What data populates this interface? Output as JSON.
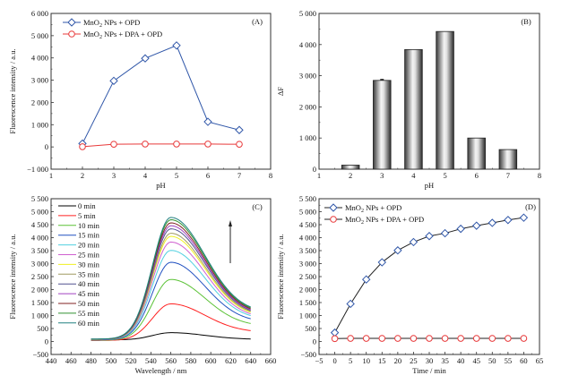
{
  "chart_data": [
    {
      "id": "A",
      "type": "line",
      "panel_label": "(A)",
      "xlabel": "pH",
      "ylabel": "Fluorescence intensity / a.u.",
      "xlim": [
        1,
        8
      ],
      "ylim": [
        -1000,
        6000
      ],
      "xticks": [
        1,
        2,
        3,
        4,
        5,
        6,
        7,
        8
      ],
      "yticks": [
        -1000,
        0,
        1000,
        2000,
        3000,
        4000,
        5000,
        6000
      ],
      "ytick_labels": [
        "−1 000",
        "0",
        "1 000",
        "2 000",
        "3 000",
        "4 000",
        "5 000",
        "6 000"
      ],
      "legend_position": "top-left",
      "x": [
        2,
        3,
        4,
        5,
        6,
        7
      ],
      "series": [
        {
          "name": "MnO2 NPs + OPD",
          "name_main": "MnO",
          "name_sub": "2",
          "name_rest": " NPs + OPD",
          "color": "#2f56a8",
          "marker": "diamond",
          "values": [
            150,
            2970,
            3980,
            4560,
            1130,
            760
          ]
        },
        {
          "name": "MnO2 NPs + DPA + OPD",
          "name_main": "MnO",
          "name_sub": "2",
          "name_rest": " NPs + DPA + OPD",
          "color": "#e8393a",
          "marker": "circle",
          "values": [
            10,
            120,
            130,
            130,
            130,
            120
          ]
        }
      ]
    },
    {
      "id": "B",
      "type": "bar",
      "panel_label": "(B)",
      "xlabel": "pH",
      "ylabel": "ΔF",
      "xlim": [
        1,
        8
      ],
      "ylim": [
        0,
        5000
      ],
      "xticks": [
        1,
        2,
        3,
        4,
        5,
        6,
        7,
        8
      ],
      "yticks": [
        0,
        1000,
        2000,
        3000,
        4000,
        5000
      ],
      "ytick_labels": [
        "0",
        "1 000",
        "2 000",
        "3 000",
        "4 000",
        "5 000"
      ],
      "categories": [
        2,
        3,
        4,
        5,
        6,
        7
      ],
      "values": [
        130,
        2850,
        3840,
        4420,
        1000,
        630
      ]
    },
    {
      "id": "C",
      "type": "line",
      "panel_label": "(C)",
      "xlabel": "Wavelength / nm",
      "ylabel": "Fluorescence intensity / a.u.",
      "xlim": [
        440,
        660
      ],
      "ylim": [
        -500,
        5500
      ],
      "xticks": [
        440,
        460,
        480,
        500,
        520,
        540,
        560,
        580,
        600,
        620,
        640,
        660
      ],
      "yticks": [
        -500,
        0,
        500,
        1000,
        1500,
        2000,
        2500,
        3000,
        3500,
        4000,
        4500,
        5000,
        5500
      ],
      "ytick_labels": [
        "−500",
        "0",
        "500",
        "1 000",
        "1 500",
        "2 000",
        "2 500",
        "3 000",
        "3 500",
        "4 000",
        "4 500",
        "5 000",
        "5 500"
      ],
      "legend_position": "top-left",
      "annotation": "upward arrow indicating increasing time",
      "x_range_data": [
        480,
        640
      ],
      "peak_wavelength": 560,
      "series": [
        {
          "name": "0 min",
          "color": "#000000",
          "peak": 340,
          "start": 60,
          "end": 80
        },
        {
          "name": "5 min",
          "color": "#ff2020",
          "peak": 1450,
          "start": 40,
          "end": 350
        },
        {
          "name": "10 min",
          "color": "#5bc236",
          "peak": 2390,
          "start": 50,
          "end": 580
        },
        {
          "name": "15 min",
          "color": "#2050c0",
          "peak": 3050,
          "start": 60,
          "end": 730
        },
        {
          "name": "20 min",
          "color": "#50d0e0",
          "peak": 3510,
          "start": 70,
          "end": 830
        },
        {
          "name": "25 min",
          "color": "#d060d0",
          "peak": 3830,
          "start": 75,
          "end": 880
        },
        {
          "name": "30 min",
          "color": "#f0f020",
          "peak": 4050,
          "start": 80,
          "end": 930
        },
        {
          "name": "35 min",
          "color": "#a09a60",
          "peak": 4170,
          "start": 80,
          "end": 960
        },
        {
          "name": "40 min",
          "color": "#505090",
          "peak": 4340,
          "start": 85,
          "end": 990
        },
        {
          "name": "45 min",
          "color": "#a040c0",
          "peak": 4460,
          "start": 85,
          "end": 1010
        },
        {
          "name": "50 min",
          "color": "#802020",
          "peak": 4570,
          "start": 90,
          "end": 1040
        },
        {
          "name": "55 min",
          "color": "#309030",
          "peak": 4690,
          "start": 90,
          "end": 1070
        },
        {
          "name": "60 min",
          "color": "#208080",
          "peak": 4780,
          "start": 95,
          "end": 1100
        }
      ]
    },
    {
      "id": "D",
      "type": "line",
      "panel_label": "(D)",
      "xlabel": "Time / min",
      "ylabel": "Fluorescence intensity / a.u.",
      "xlim": [
        -5,
        65
      ],
      "ylim": [
        -500,
        5500
      ],
      "xticks": [
        -5,
        0,
        5,
        10,
        15,
        20,
        25,
        30,
        35,
        40,
        45,
        50,
        55,
        60,
        65
      ],
      "xtick_labels": [
        "−5",
        "0",
        "5",
        "10",
        "15",
        "20",
        "25",
        "30",
        "35",
        "40",
        "45",
        "50",
        "55",
        "60",
        "65"
      ],
      "yticks": [
        -500,
        0,
        500,
        1000,
        1500,
        2000,
        2500,
        3000,
        3500,
        4000,
        4500,
        5000,
        5500
      ],
      "ytick_labels": [
        "−500",
        "0",
        "500",
        "1 000",
        "1 500",
        "2 000",
        "2 500",
        "3 000",
        "3 500",
        "4 000",
        "4 500",
        "5 000",
        "5 500"
      ],
      "legend_position": "top-left",
      "x": [
        0,
        5,
        10,
        15,
        20,
        25,
        30,
        35,
        40,
        45,
        50,
        55,
        60
      ],
      "series": [
        {
          "name": "MnO2 NPs + OPD",
          "name_main": "MnO",
          "name_sub": "2",
          "name_rest": " NPs + OPD",
          "color": "#2f56a8",
          "line_color": "#222222",
          "marker": "diamond",
          "values": [
            340,
            1450,
            2390,
            3050,
            3510,
            3830,
            4060,
            4170,
            4340,
            4460,
            4570,
            4680,
            4770
          ]
        },
        {
          "name": "MnO2 NPs + DPA + OPD",
          "name_main": "MnO",
          "name_sub": "2",
          "name_rest": " NPs + DPA + OPD",
          "color": "#e8393a",
          "line_color": "#222222",
          "marker": "circle",
          "values": [
            110,
            120,
            120,
            120,
            120,
            120,
            120,
            120,
            120,
            120,
            120,
            120,
            120
          ]
        }
      ]
    }
  ]
}
